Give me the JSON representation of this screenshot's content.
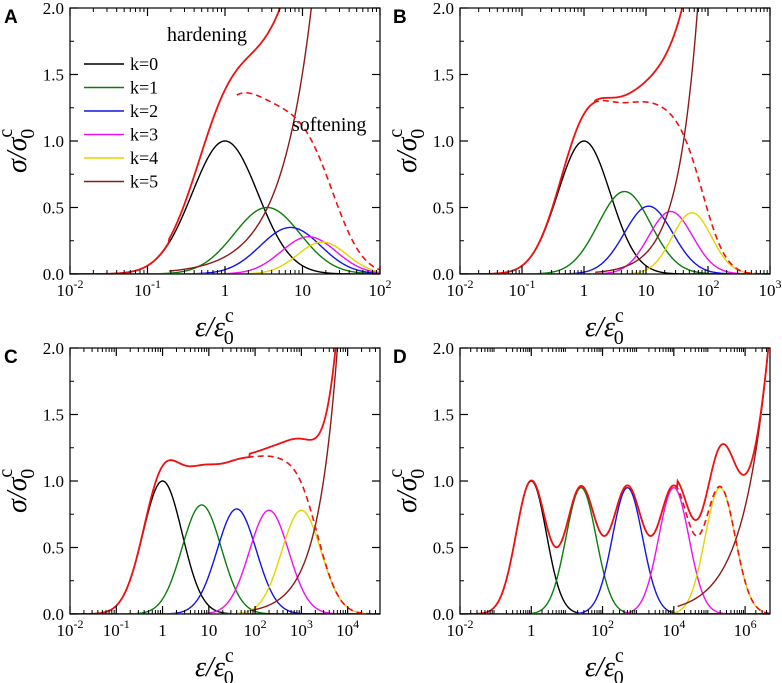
{
  "figure": {
    "curve_colors": {
      "k0": "#000000",
      "k1": "#0a7d0a",
      "k2": "#1414e6",
      "k3": "#ee10ee",
      "k4": "#e6d200",
      "k5": "#8b1a1a",
      "total": "#ee1111",
      "softening": "#ee1111"
    },
    "legend_labels": [
      "k=0",
      "k=1",
      "k=2",
      "k=3",
      "k=4",
      "k=5"
    ]
  },
  "chart_data": [
    {
      "panel": "A",
      "type": "line",
      "xscale": "log",
      "xlim": [
        0.01,
        100
      ],
      "ylim": [
        0,
        2.0
      ],
      "xlabel": "ε/ε0c",
      "ylabel": "σ/σ0c",
      "yticks": [
        "0.0",
        "0.5",
        "1.0",
        "1.5",
        "2.0"
      ],
      "xticks": [
        {
          "v": 0.01,
          "base": "10",
          "exp": "-2"
        },
        {
          "v": 0.1,
          "base": "10",
          "exp": "-1"
        },
        {
          "v": 1,
          "base": "1",
          "exp": ""
        },
        {
          "v": 10,
          "base": "10",
          "exp": ""
        },
        {
          "v": 100,
          "base": "10",
          "exp": "2"
        }
      ],
      "annotations": {
        "upper": "hardening",
        "lower": "softening"
      },
      "legend": {
        "position": "top-left",
        "entries": [
          "k=0",
          "k=1",
          "k=2",
          "k=3",
          "k=4",
          "k=5"
        ]
      },
      "series": [
        {
          "name": "k=0",
          "peak_x": 1,
          "peak_y": 1.0,
          "width": 0.6,
          "kind": "peak"
        },
        {
          "name": "k=1",
          "peak_x": 3.5,
          "peak_y": 0.5,
          "width": 0.6,
          "kind": "peak"
        },
        {
          "name": "k=2",
          "peak_x": 7,
          "peak_y": 0.35,
          "width": 0.55,
          "kind": "peak"
        },
        {
          "name": "k=3",
          "peak_x": 12,
          "peak_y": 0.28,
          "width": 0.5,
          "kind": "peak"
        },
        {
          "name": "k=4",
          "peak_x": 18,
          "peak_y": 0.24,
          "width": 0.45,
          "kind": "peak"
        },
        {
          "name": "k=5",
          "x_at_y0_2": 1.5,
          "x_at_y2": 13,
          "kind": "rise"
        },
        {
          "name": "total",
          "kind": "total"
        },
        {
          "name": "softening",
          "kind": "dashed"
        }
      ]
    },
    {
      "panel": "B",
      "type": "line",
      "xscale": "log",
      "xlim": [
        0.01,
        1000
      ],
      "ylim": [
        0,
        2.0
      ],
      "xlabel": "ε/ε0c",
      "ylabel": "σ/σ0c",
      "yticks": [
        "0.0",
        "0.5",
        "1.0",
        "1.5",
        "2.0"
      ],
      "xticks": [
        {
          "v": 0.01,
          "base": "10",
          "exp": "-2"
        },
        {
          "v": 0.1,
          "base": "10",
          "exp": "-1"
        },
        {
          "v": 1,
          "base": "1",
          "exp": ""
        },
        {
          "v": 10,
          "base": "10",
          "exp": ""
        },
        {
          "v": 100,
          "base": "10",
          "exp": "2"
        },
        {
          "v": 1000,
          "base": "10",
          "exp": "3"
        }
      ],
      "series": [
        {
          "name": "k=0",
          "peak_x": 1,
          "peak_y": 1.0,
          "width": 0.6,
          "kind": "peak"
        },
        {
          "name": "k=1",
          "peak_x": 4.5,
          "peak_y": 0.62,
          "width": 0.6,
          "kind": "peak"
        },
        {
          "name": "k=2",
          "peak_x": 11,
          "peak_y": 0.51,
          "width": 0.55,
          "kind": "peak"
        },
        {
          "name": "k=3",
          "peak_x": 25,
          "peak_y": 0.47,
          "width": 0.5,
          "kind": "peak"
        },
        {
          "name": "k=4",
          "peak_x": 55,
          "peak_y": 0.46,
          "width": 0.45,
          "kind": "peak"
        },
        {
          "name": "k=5",
          "x_at_y0_2": 12,
          "x_at_y2": 68,
          "kind": "rise"
        },
        {
          "name": "total",
          "kind": "total"
        },
        {
          "name": "softening",
          "kind": "dashed"
        }
      ]
    },
    {
      "panel": "C",
      "type": "line",
      "xscale": "log",
      "xlim": [
        0.01,
        50000
      ],
      "ylim": [
        0,
        2.0
      ],
      "xlabel": "ε/ε0c",
      "ylabel": "σ/σ0c",
      "yticks": [
        "0.0",
        "0.5",
        "1.0",
        "1.5",
        "2.0"
      ],
      "xticks": [
        {
          "v": 0.01,
          "base": "10",
          "exp": "-2"
        },
        {
          "v": 0.1,
          "base": "10",
          "exp": "-1"
        },
        {
          "v": 1,
          "base": "1",
          "exp": ""
        },
        {
          "v": 10,
          "base": "10",
          "exp": ""
        },
        {
          "v": 100,
          "base": "10",
          "exp": "2"
        },
        {
          "v": 1000,
          "base": "10",
          "exp": "3"
        },
        {
          "v": 10000,
          "base": "10",
          "exp": "4"
        }
      ],
      "series": [
        {
          "name": "k=0",
          "peak_x": 1,
          "peak_y": 1.0,
          "width": 0.6,
          "kind": "peak"
        },
        {
          "name": "k=1",
          "peak_x": 7,
          "peak_y": 0.82,
          "width": 0.6,
          "kind": "peak"
        },
        {
          "name": "k=2",
          "peak_x": 40,
          "peak_y": 0.79,
          "width": 0.6,
          "kind": "peak"
        },
        {
          "name": "k=3",
          "peak_x": 200,
          "peak_y": 0.78,
          "width": 0.6,
          "kind": "peak"
        },
        {
          "name": "k=4",
          "peak_x": 1000,
          "peak_y": 0.78,
          "width": 0.6,
          "kind": "peak"
        },
        {
          "name": "k=5",
          "x_at_y0_2": 600,
          "x_at_y2": 6000,
          "kind": "rise"
        },
        {
          "name": "total",
          "kind": "total"
        },
        {
          "name": "softening",
          "kind": "dashed"
        }
      ]
    },
    {
      "panel": "D",
      "type": "line",
      "xscale": "log",
      "xlim": [
        0.01,
        5000000
      ],
      "ylim": [
        0,
        2.0
      ],
      "xlabel": "ε/ε0c",
      "ylabel": "σ/σ0c",
      "yticks": [
        "0.0",
        "0.5",
        "1.0",
        "1.5",
        "2.0"
      ],
      "xticks": [
        {
          "v": 0.01,
          "base": "10",
          "exp": "-2"
        },
        {
          "v": 1,
          "base": "1",
          "exp": ""
        },
        {
          "v": 100,
          "base": "10",
          "exp": "2"
        },
        {
          "v": 10000,
          "base": "10",
          "exp": "4"
        },
        {
          "v": 1000000,
          "base": "10",
          "exp": "6"
        }
      ],
      "series": [
        {
          "name": "k=0",
          "peak_x": 1,
          "peak_y": 1.0,
          "width": 0.6,
          "kind": "peak"
        },
        {
          "name": "k=1",
          "peak_x": 25,
          "peak_y": 0.95,
          "width": 0.6,
          "kind": "peak"
        },
        {
          "name": "k=2",
          "peak_x": 500,
          "peak_y": 0.95,
          "width": 0.6,
          "kind": "peak"
        },
        {
          "name": "k=3",
          "peak_x": 10000,
          "peak_y": 0.95,
          "width": 0.6,
          "kind": "peak"
        },
        {
          "name": "k=4",
          "peak_x": 200000,
          "peak_y": 0.95,
          "width": 0.6,
          "kind": "peak"
        },
        {
          "name": "k=5",
          "x_at_y0_2": 100000,
          "x_at_y2": 4500000,
          "kind": "rise"
        },
        {
          "name": "total",
          "kind": "total"
        },
        {
          "name": "softening",
          "kind": "dashed"
        }
      ]
    }
  ]
}
